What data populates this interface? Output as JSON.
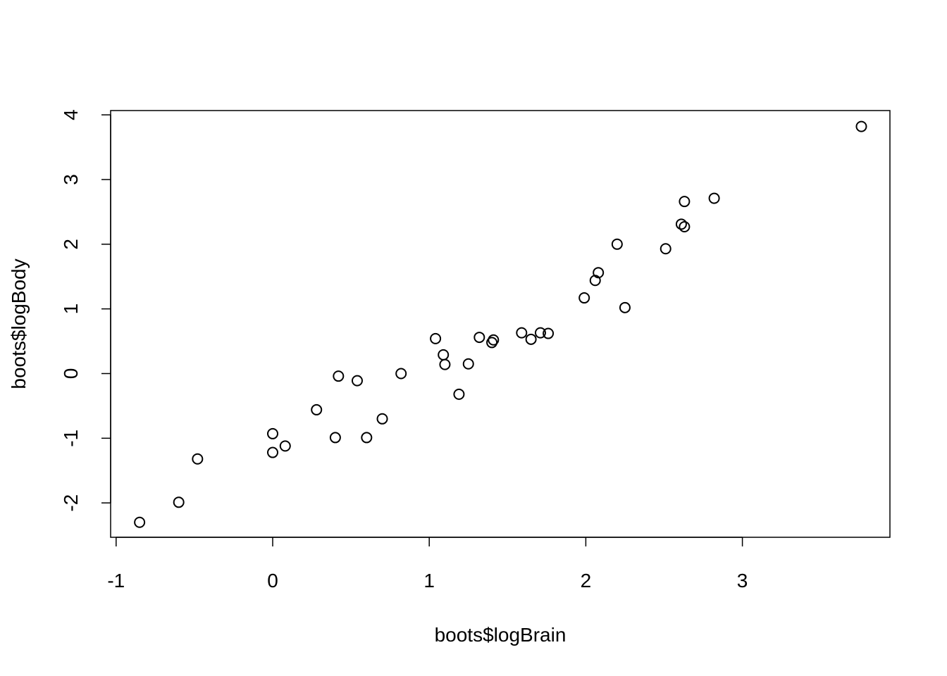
{
  "chart_data": {
    "type": "scatter",
    "title": "",
    "xlabel": "boots$logBrain",
    "ylabel": "boots$logBody",
    "xlim": [
      -1.04,
      3.94
    ],
    "ylim": [
      -2.54,
      4.07
    ],
    "xticks": [
      -1,
      0,
      1,
      2,
      3
    ],
    "yticks": [
      -2,
      -1,
      0,
      1,
      2,
      3,
      4
    ],
    "grid": false,
    "marker": "open-circle",
    "color": "#000000",
    "points": [
      {
        "x": -0.85,
        "y": -2.3
      },
      {
        "x": -0.6,
        "y": -1.99
      },
      {
        "x": -0.48,
        "y": -1.32
      },
      {
        "x": 0.0,
        "y": -0.93
      },
      {
        "x": 0.0,
        "y": -1.22
      },
      {
        "x": 0.08,
        "y": -1.12
      },
      {
        "x": 0.28,
        "y": -0.56
      },
      {
        "x": 0.4,
        "y": -0.99
      },
      {
        "x": 0.42,
        "y": -0.04
      },
      {
        "x": 0.54,
        "y": -0.11
      },
      {
        "x": 0.6,
        "y": -0.99
      },
      {
        "x": 0.7,
        "y": -0.7
      },
      {
        "x": 0.82,
        "y": 0.0
      },
      {
        "x": 1.04,
        "y": 0.54
      },
      {
        "x": 1.09,
        "y": 0.29
      },
      {
        "x": 1.1,
        "y": 0.14
      },
      {
        "x": 1.19,
        "y": -0.32
      },
      {
        "x": 1.25,
        "y": 0.15
      },
      {
        "x": 1.32,
        "y": 0.56
      },
      {
        "x": 1.4,
        "y": 0.48
      },
      {
        "x": 1.41,
        "y": 0.52
      },
      {
        "x": 1.59,
        "y": 0.63
      },
      {
        "x": 1.65,
        "y": 0.53
      },
      {
        "x": 1.71,
        "y": 0.63
      },
      {
        "x": 1.76,
        "y": 0.62
      },
      {
        "x": 1.99,
        "y": 1.17
      },
      {
        "x": 2.06,
        "y": 1.44
      },
      {
        "x": 2.08,
        "y": 1.56
      },
      {
        "x": 2.2,
        "y": 2.0
      },
      {
        "x": 2.25,
        "y": 1.02
      },
      {
        "x": 2.51,
        "y": 1.93
      },
      {
        "x": 2.61,
        "y": 2.31
      },
      {
        "x": 2.63,
        "y": 2.27
      },
      {
        "x": 2.63,
        "y": 2.66
      },
      {
        "x": 2.82,
        "y": 2.71
      },
      {
        "x": 3.76,
        "y": 3.82
      }
    ]
  }
}
